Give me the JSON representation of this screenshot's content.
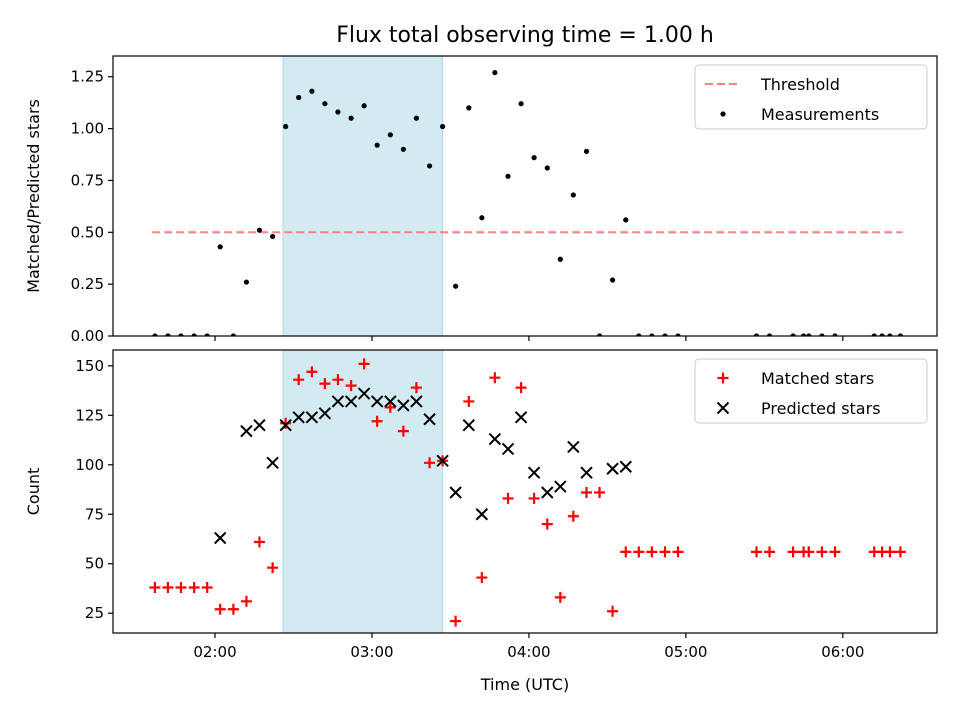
{
  "title": "Flux total observing time = 1.00 h",
  "colors": {
    "shade": "#add8e6",
    "threshold": "#ff7f7f",
    "measurement": "#000000",
    "matched": "#ff0000",
    "predicted": "#000000"
  },
  "chart_data": [
    {
      "type": "scatter",
      "ylabel": "Matched/Predicted stars",
      "xlim": [
        1.35,
        6.6
      ],
      "ylim": [
        0,
        1.35
      ],
      "yticks": [
        0.0,
        0.25,
        0.5,
        0.75,
        1.0,
        1.25
      ],
      "ytick_labels": [
        "0.00",
        "0.25",
        "0.50",
        "0.75",
        "1.00",
        "1.25"
      ],
      "shaded_span": [
        2.433,
        3.45
      ],
      "threshold": {
        "name": "Threshold",
        "value": 0.5,
        "x": [
          1.6,
          6.38
        ]
      },
      "legend_position": "top-right",
      "series": [
        {
          "name": "Measurements",
          "x": [
            1.617,
            1.7,
            1.783,
            1.867,
            1.95,
            2.033,
            2.117,
            2.2,
            2.283,
            2.367,
            2.45,
            2.533,
            2.617,
            2.7,
            2.783,
            2.867,
            2.95,
            3.033,
            3.117,
            3.2,
            3.283,
            3.367,
            3.45,
            3.533,
            3.617,
            3.7,
            3.783,
            3.867,
            3.95,
            4.033,
            4.117,
            4.2,
            4.283,
            4.367,
            4.45,
            4.533,
            4.617,
            4.7,
            4.783,
            4.867,
            4.95,
            5.45,
            5.533,
            5.683,
            5.75,
            5.783,
            5.867,
            5.95,
            6.2,
            6.25,
            6.3,
            6.367
          ],
          "y": [
            0,
            0,
            0,
            0,
            0,
            0.43,
            0,
            0.26,
            0.51,
            0.48,
            1.01,
            1.15,
            1.18,
            1.12,
            1.08,
            1.05,
            1.11,
            0.92,
            0.97,
            0.9,
            1.05,
            0.82,
            1.01,
            0.24,
            1.1,
            0.57,
            1.27,
            0.77,
            1.12,
            0.86,
            0.81,
            0.37,
            0.68,
            0.89,
            0,
            0.27,
            0.56,
            0,
            0,
            0,
            0,
            0,
            0,
            0,
            0,
            0,
            0,
            0,
            0,
            0,
            0,
            0
          ]
        }
      ]
    },
    {
      "type": "scatter",
      "xlabel": "Time (UTC)",
      "ylabel": "Count",
      "xlim": [
        1.35,
        6.6
      ],
      "ylim": [
        15,
        158
      ],
      "yticks": [
        25,
        50,
        75,
        100,
        125,
        150
      ],
      "ytick_labels": [
        "25",
        "50",
        "75",
        "100",
        "125",
        "150"
      ],
      "xticks": [
        2,
        3,
        4,
        5,
        6
      ],
      "xtick_labels": [
        "02:00",
        "03:00",
        "04:00",
        "05:00",
        "06:00"
      ],
      "shaded_span": [
        2.433,
        3.45
      ],
      "legend_position": "top-right",
      "series": [
        {
          "name": "Matched stars",
          "marker": "plus",
          "x": [
            1.617,
            1.7,
            1.783,
            1.867,
            1.95,
            2.033,
            2.117,
            2.2,
            2.283,
            2.367,
            2.45,
            2.533,
            2.617,
            2.7,
            2.783,
            2.867,
            2.95,
            3.033,
            3.117,
            3.2,
            3.283,
            3.367,
            3.45,
            3.533,
            3.617,
            3.7,
            3.783,
            3.867,
            3.95,
            4.033,
            4.117,
            4.2,
            4.283,
            4.367,
            4.45,
            4.533,
            4.617,
            4.7,
            4.783,
            4.867,
            4.95,
            5.45,
            5.533,
            5.683,
            5.75,
            5.783,
            5.867,
            5.95,
            6.2,
            6.25,
            6.3,
            6.367
          ],
          "y": [
            38,
            38,
            38,
            38,
            38,
            27,
            27,
            31,
            61,
            48,
            121,
            143,
            147,
            141,
            143,
            140,
            151,
            122,
            129,
            117,
            139,
            101,
            102,
            21,
            132,
            43,
            144,
            83,
            139,
            83,
            70,
            33,
            74,
            86,
            86,
            26,
            56,
            56,
            56,
            56,
            56,
            56,
            56,
            56,
            56,
            56,
            56,
            56,
            56,
            56,
            56,
            56
          ]
        },
        {
          "name": "Predicted stars",
          "marker": "x",
          "x": [
            2.033,
            2.2,
            2.283,
            2.367,
            2.45,
            2.533,
            2.617,
            2.7,
            2.783,
            2.867,
            2.95,
            3.033,
            3.117,
            3.2,
            3.283,
            3.367,
            3.45,
            3.533,
            3.617,
            3.7,
            3.783,
            3.867,
            3.95,
            4.033,
            4.117,
            4.2,
            4.283,
            4.367,
            4.533,
            4.617
          ],
          "y": [
            63,
            117,
            120,
            101,
            120,
            124,
            124,
            126,
            132,
            132,
            136,
            132,
            132,
            130,
            132,
            123,
            102,
            86,
            120,
            75,
            113,
            108,
            124,
            96,
            86,
            89,
            109,
            96,
            98,
            99
          ]
        }
      ]
    }
  ]
}
